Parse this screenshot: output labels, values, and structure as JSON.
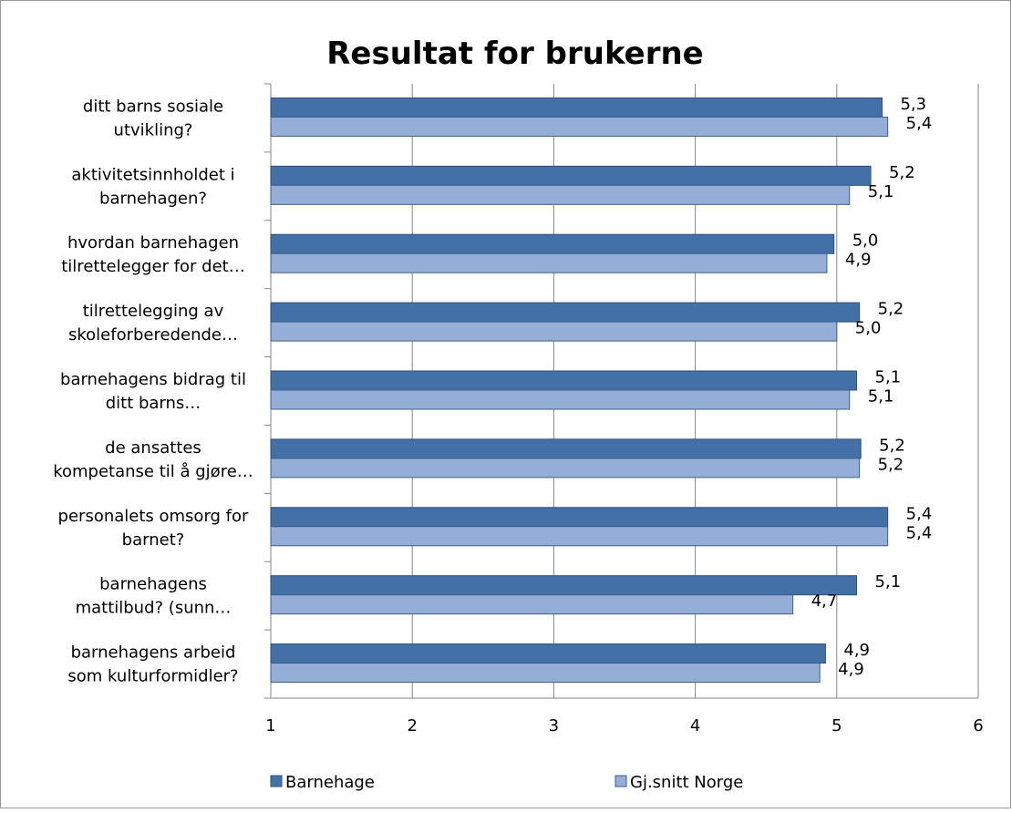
{
  "chart_data": {
    "type": "hbar",
    "title": "Resultat for brukerne",
    "categories": [
      "ditt barns sosiale\nutvikling?",
      "aktivitetsinnholdet i\nbarnehagen?",
      "hvordan barnehagen\ntilrettelegger for det…",
      "tilrettelegging av\nskoleforberedende…",
      "barnehagens bidrag til\nditt barns…",
      "de ansattes\nkompetanse til å gjøre…",
      "personalets omsorg for\nbarnet?",
      "barnehagens\nmattilbud?  (sunn…",
      "barnehagens arbeid\nsom kulturformidler?"
    ],
    "series": [
      {
        "name": "Barnehage",
        "color": "#4470a8",
        "values": [
          5.32,
          5.24,
          4.98,
          5.16,
          5.14,
          5.17,
          5.36,
          5.14,
          4.92
        ],
        "value_labels": [
          "5,3",
          "5,2",
          "5,0",
          "5,2",
          "5,1",
          "5,2",
          "5,4",
          "5,1",
          "4,9"
        ]
      },
      {
        "name": "Gj.snitt Norge",
        "color": "#95aed8",
        "values": [
          5.36,
          5.09,
          4.93,
          5.0,
          5.09,
          5.16,
          5.36,
          4.69,
          4.88
        ],
        "value_labels": [
          "5,4",
          "5,1",
          "4,9",
          "5,0",
          "5,1",
          "5,2",
          "5,4",
          "4,7",
          "4,9"
        ]
      }
    ],
    "xlim": [
      1,
      6
    ],
    "xticks": [
      1,
      2,
      3,
      4,
      5,
      6
    ],
    "grid": true,
    "legend": "bottom"
  }
}
